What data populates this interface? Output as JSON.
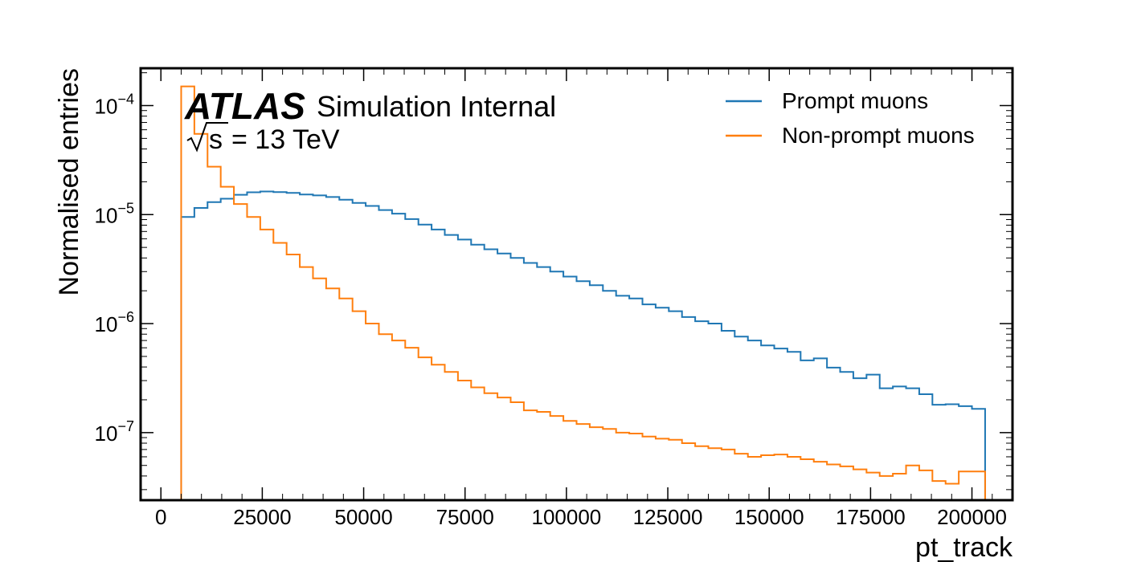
{
  "chart_data": {
    "type": "line",
    "style": "step-histogram",
    "xlabel": "pt_track",
    "ylabel": "Normalised entries",
    "xlim": [
      -5000,
      210000
    ],
    "ylim": [
      2.4e-08,
      0.00022
    ],
    "yscale": "log",
    "x_ticks": [
      0,
      25000,
      50000,
      75000,
      100000,
      125000,
      150000,
      175000,
      200000
    ],
    "x_tick_labels": [
      "0",
      "25000",
      "50000",
      "75000",
      "100000",
      "125000",
      "150000",
      "175000",
      "200000"
    ],
    "y_ticks": [
      1e-07,
      1e-06,
      1e-05,
      0.0001
    ],
    "y_tick_labels": [
      {
        "base": "10",
        "exp": "−7"
      },
      {
        "base": "10",
        "exp": "−6"
      },
      {
        "base": "10",
        "exp": "−5"
      },
      {
        "base": "10",
        "exp": "−4"
      }
    ],
    "grid": false,
    "legend_position": "top-right",
    "annotations": {
      "experiment": "ATLAS",
      "status": "Simulation Internal",
      "energy_sqrt": "s",
      "energy_value": "= 13 TeV"
    },
    "bin_edges_start": 5000,
    "bin_width": 3250,
    "series": [
      {
        "name": "Prompt muons",
        "color": "#1f77b4",
        "values": [
          9.5e-06,
          1.15e-05,
          1.3e-05,
          1.4e-05,
          1.52e-05,
          1.6e-05,
          1.63e-05,
          1.61e-05,
          1.58e-05,
          1.53e-05,
          1.5e-05,
          1.45e-05,
          1.37e-05,
          1.28e-05,
          1.2e-05,
          1.1e-05,
          1.02e-05,
          9.1e-06,
          8.1e-06,
          7.3e-06,
          6.5e-06,
          5.9e-06,
          5.3e-06,
          4.8e-06,
          4.4e-06,
          4e-06,
          3.6e-06,
          3.3e-06,
          3e-06,
          2.7e-06,
          2.45e-06,
          2.25e-06,
          2e-06,
          1.8e-06,
          1.7e-06,
          1.5e-06,
          1.4e-06,
          1.3e-06,
          1.15e-06,
          1.05e-06,
          1e-06,
          8.6e-07,
          7.6e-07,
          7e-07,
          6.3e-07,
          5.9e-07,
          5.5e-07,
          4.6e-07,
          4.8e-07,
          3.95e-07,
          3.6e-07,
          3.15e-07,
          3.4e-07,
          2.55e-07,
          2.65e-07,
          2.55e-07,
          2.25e-07,
          1.8e-07,
          1.82e-07,
          1.75e-07,
          1.65e-07
        ]
      },
      {
        "name": "Non-prompt muons",
        "color": "#ff7f0e",
        "values": [
          0.00015,
          5.5e-05,
          2.75e-05,
          1.8e-05,
          1.25e-05,
          9.5e-06,
          7.3e-06,
          5.5e-06,
          4.3e-06,
          3.3e-06,
          2.6e-06,
          2.1e-06,
          1.7e-06,
          1.3e-06,
          1e-06,
          8e-07,
          7e-07,
          6e-07,
          4.9e-07,
          4.2e-07,
          3.6e-07,
          3e-07,
          2.6e-07,
          2.3e-07,
          2.1e-07,
          1.9e-07,
          1.6e-07,
          1.55e-07,
          1.42e-07,
          1.28e-07,
          1.2e-07,
          1.12e-07,
          1.08e-07,
          1e-07,
          9.8e-08,
          9.2e-08,
          8.8e-08,
          8.6e-08,
          8e-08,
          7.5e-08,
          7.2e-08,
          7e-08,
          6.4e-08,
          6e-08,
          6.2e-08,
          6.3e-08,
          6e-08,
          5.7e-08,
          5.4e-08,
          5.1e-08,
          4.9e-08,
          4.6e-08,
          4.3e-08,
          4e-08,
          4.2e-08,
          5e-08,
          4.5e-08,
          3.6e-08,
          3.4e-08,
          4.4e-08,
          4.4e-08
        ]
      }
    ]
  }
}
